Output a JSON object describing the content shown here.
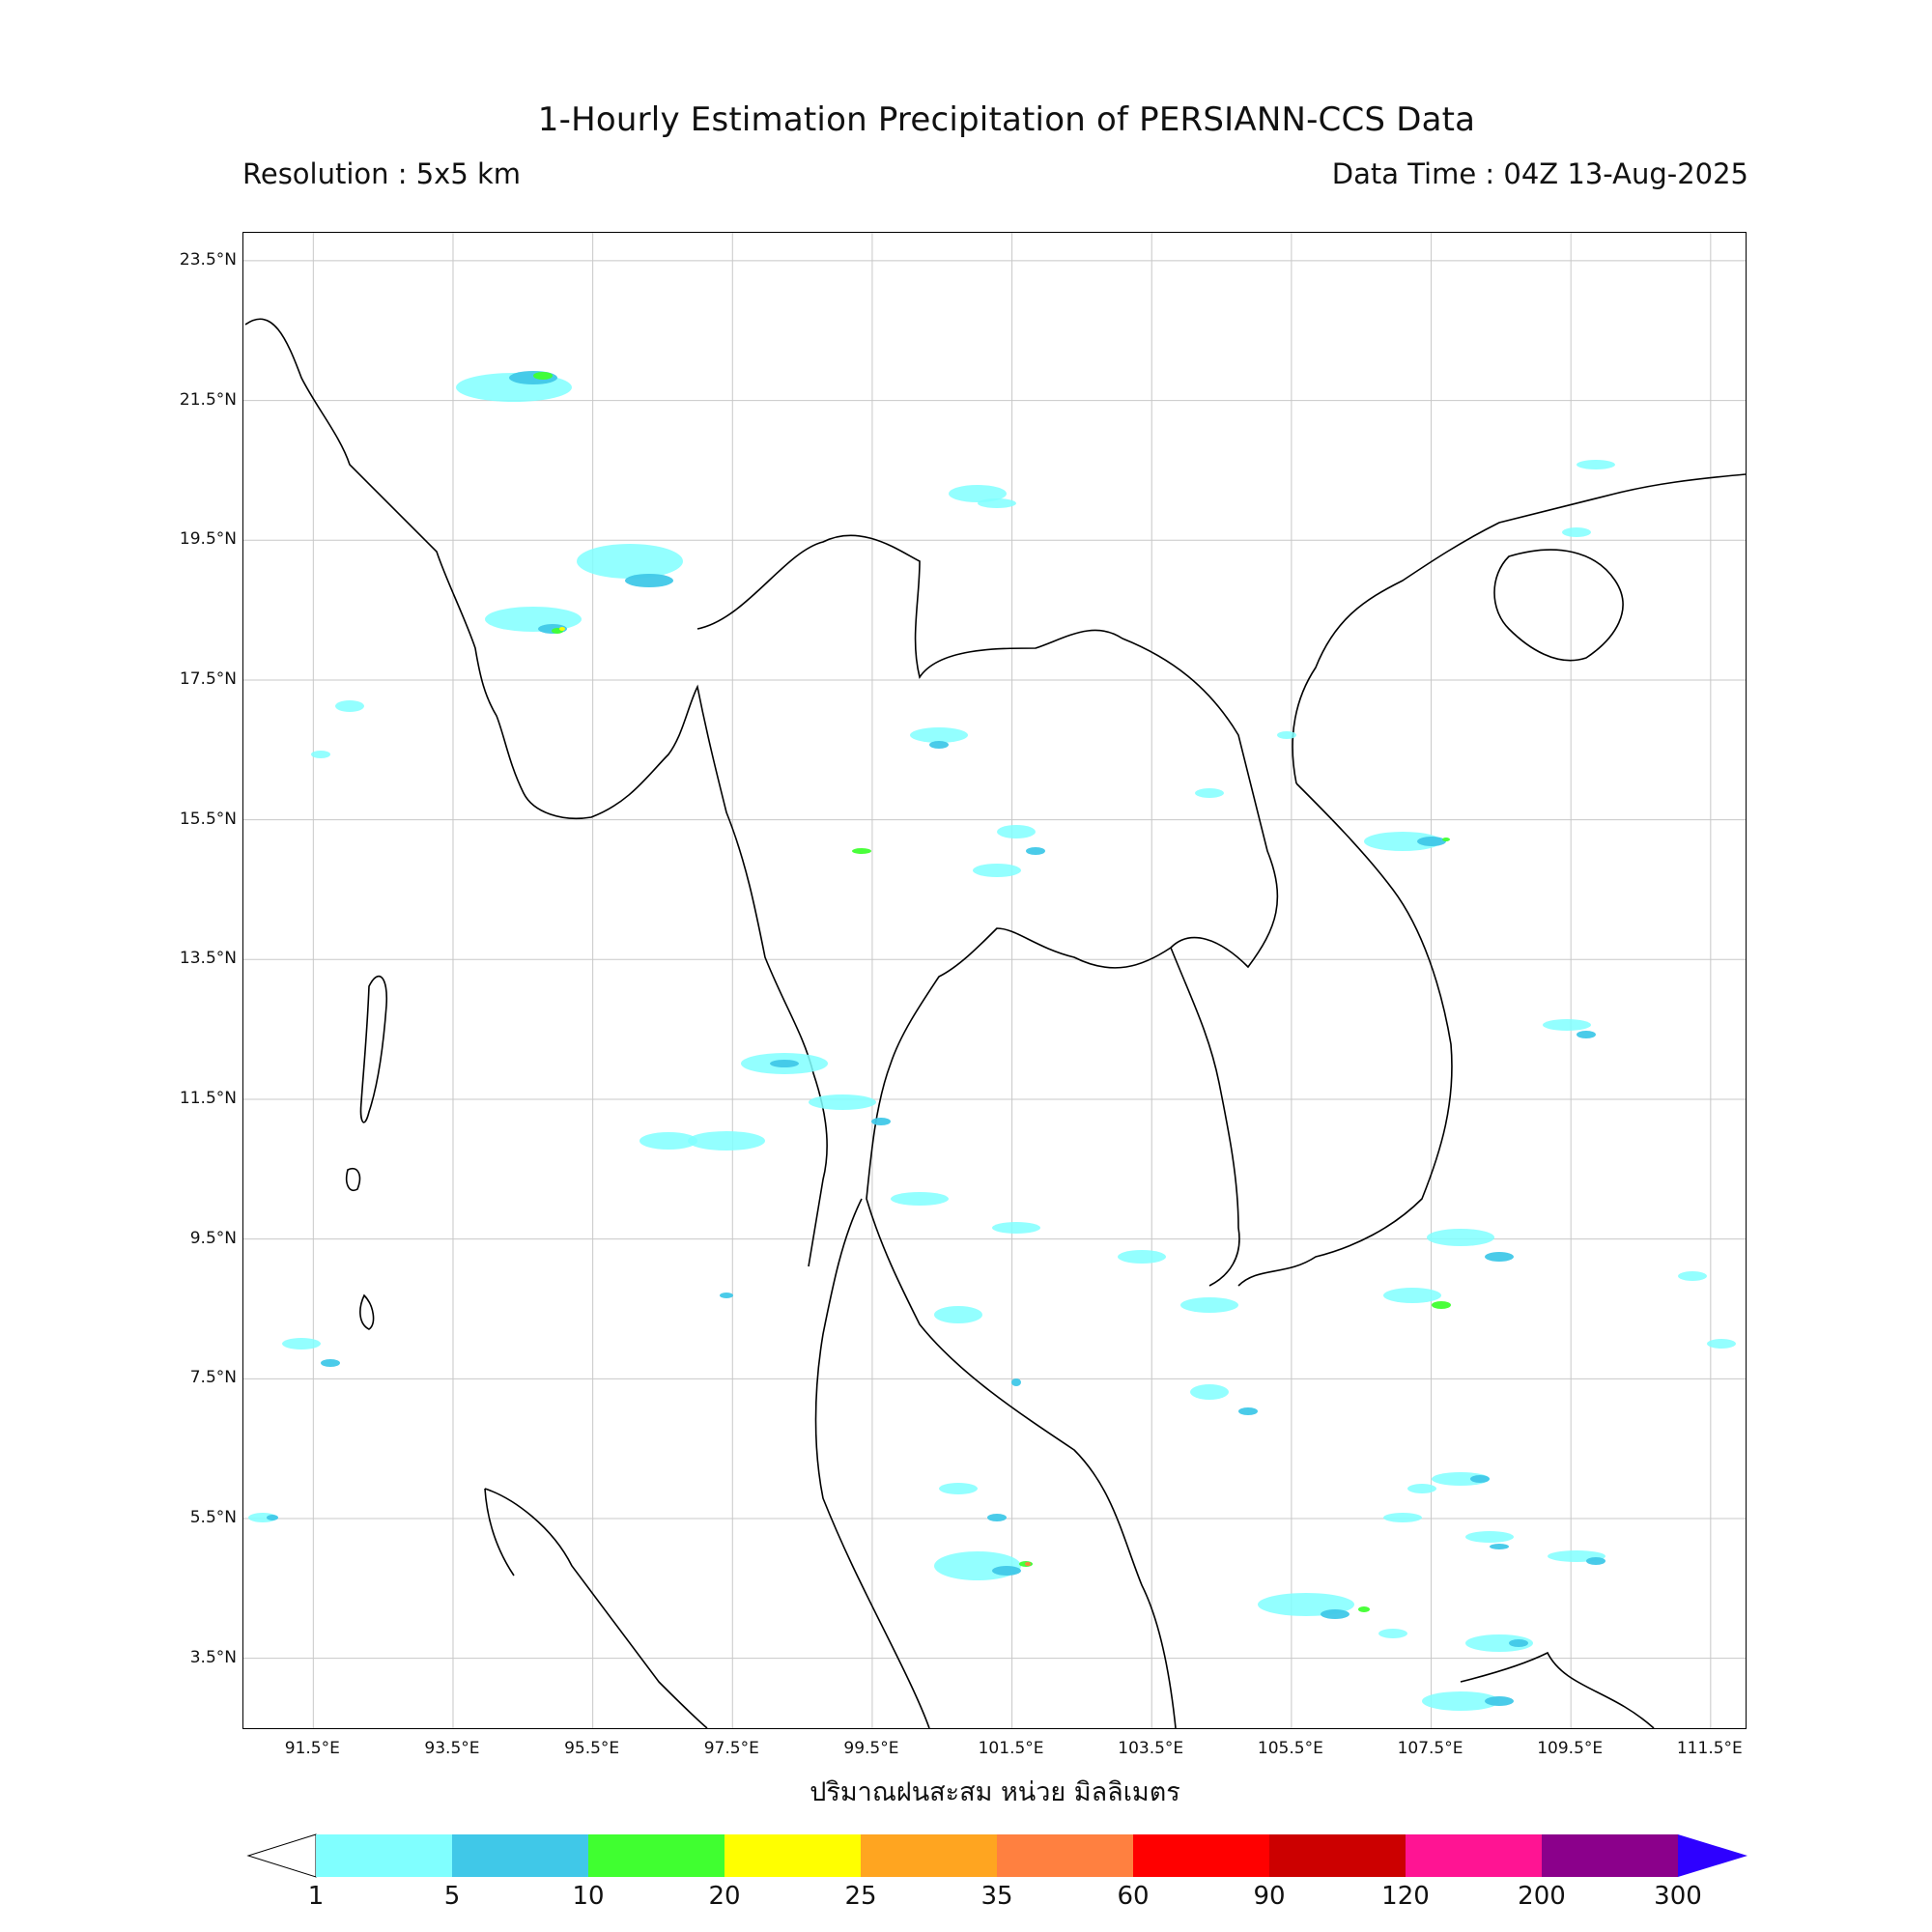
{
  "header": {
    "title": "1-Hourly Estimation Precipitation of PERSIANN-CCS Data",
    "resolution": "Resolution : 5x5 km",
    "data_time": "Data Time : 04Z 13-Aug-2025"
  },
  "map": {
    "lon_range": [
      90.5,
      112.0
    ],
    "lat_range": [
      2.5,
      23.9
    ],
    "lat_ticks": [
      "23.5°N",
      "21.5°N",
      "19.5°N",
      "17.5°N",
      "15.5°N",
      "13.5°N",
      "11.5°N",
      "9.5°N",
      "7.5°N",
      "5.5°N",
      "3.5°N"
    ],
    "lon_ticks": [
      "91.5°E",
      "93.5°E",
      "95.5°E",
      "97.5°E",
      "99.5°E",
      "101.5°E",
      "103.5°E",
      "105.5°E",
      "107.5°E",
      "109.5°E",
      "111.5°E"
    ],
    "xlabel": "ปริมาณฝนสะสม หน่วย มิลลิเมตร"
  },
  "colorbar": {
    "ticks": [
      "1",
      "5",
      "10",
      "20",
      "25",
      "35",
      "60",
      "90",
      "120",
      "200",
      "300"
    ],
    "colors": [
      "#80ffff",
      "#40c8e8",
      "#40ff30",
      "#ffff00",
      "#ffa520",
      "#ff8040",
      "#ff0000",
      "#cc0000",
      "#ff1493",
      "#8b008b",
      "#2e00ff"
    ]
  }
}
